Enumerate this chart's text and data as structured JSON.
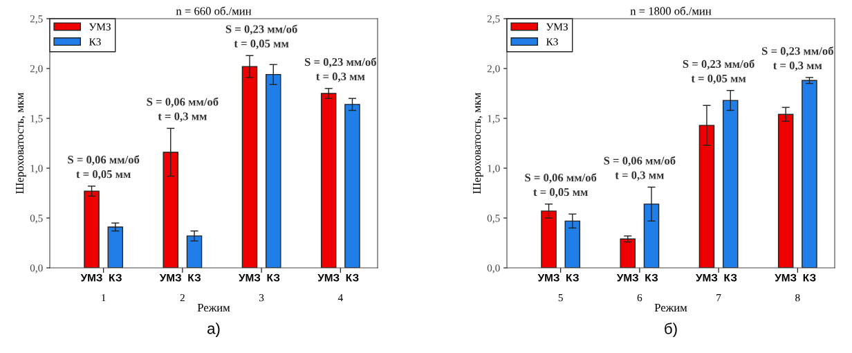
{
  "chart_data": [
    {
      "type": "bar",
      "title": "n = 660 об./мин",
      "xlabel": "Режим",
      "ylabel": "Шероховатость, мкм",
      "categories": [
        "1",
        "2",
        "3",
        "4"
      ],
      "series": [
        {
          "name": "УМЗ",
          "color": "#ee0000",
          "values": [
            0.77,
            1.16,
            2.02,
            1.75
          ],
          "errors": [
            0.05,
            0.24,
            0.11,
            0.05
          ]
        },
        {
          "name": "КЗ",
          "color": "#1f7ee8",
          "values": [
            0.41,
            0.32,
            1.94,
            1.64
          ],
          "errors": [
            0.04,
            0.05,
            0.1,
            0.06
          ]
        }
      ],
      "ylim": [
        0,
        2.5
      ],
      "yticks": [
        {
          "value": 0,
          "label": "0,0"
        },
        {
          "value": 0.5,
          "label": "0,5"
        },
        {
          "value": 1.0,
          "label": "1,0"
        },
        {
          "value": 1.5,
          "label": "1,5"
        },
        {
          "value": 2.0,
          "label": "2,0"
        },
        {
          "value": 2.5,
          "label": "2,5"
        }
      ],
      "legend": "top left",
      "grid": false,
      "annotations": [
        "S = 0,06 мм/об\nt = 0,05 мм",
        "S = 0,06 мм/об\nt = 0,3 мм",
        "S = 0,23 мм/об\nt = 0,05 мм",
        "S = 0,23 мм/об\nt = 0,3 мм",
        "а)"
      ]
    },
    {
      "type": "bar",
      "title": "n = 1800 об./мин",
      "xlabel": "Режим",
      "ylabel": "Шероховатость, мкм",
      "categories": [
        "5",
        "6",
        "7",
        "8"
      ],
      "series": [
        {
          "name": "УМЗ",
          "color": "#ee0000",
          "values": [
            0.57,
            0.29,
            1.43,
            1.54
          ],
          "errors": [
            0.07,
            0.03,
            0.2,
            0.07
          ]
        },
        {
          "name": "КЗ",
          "color": "#1f7ee8",
          "values": [
            0.47,
            0.64,
            1.68,
            1.88
          ],
          "errors": [
            0.07,
            0.17,
            0.1,
            0.03
          ]
        }
      ],
      "ylim": [
        0,
        2.5
      ],
      "yticks": [
        {
          "value": 0,
          "label": "0,0"
        },
        {
          "value": 0.5,
          "label": "0,5"
        },
        {
          "value": 1.0,
          "label": "1,0"
        },
        {
          "value": 1.5,
          "label": "1,5"
        },
        {
          "value": 2.0,
          "label": "2,0"
        },
        {
          "value": 2.5,
          "label": "2,5"
        }
      ],
      "legend": "top left",
      "grid": false,
      "annotations": [
        "S = 0,06 мм/об\nt = 0,05 мм",
        "S = 0,06 мм/об\nt = 0,3 мм",
        "S = 0,23 мм/об\nt = 0,05 мм",
        "S = 0,23 мм/об\nt = 0,3 мм",
        "б)"
      ]
    }
  ]
}
